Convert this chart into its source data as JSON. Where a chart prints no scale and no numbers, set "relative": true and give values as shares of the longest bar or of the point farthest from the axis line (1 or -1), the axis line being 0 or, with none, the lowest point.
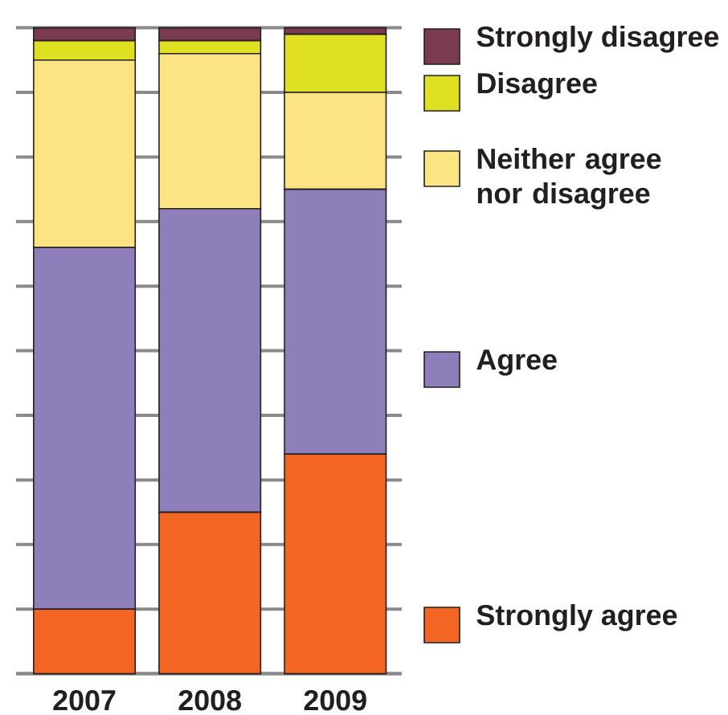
{
  "chart_data": {
    "type": "bar",
    "stacked": true,
    "relative": true,
    "categories": [
      "2007",
      "2008",
      "2009"
    ],
    "series": [
      {
        "name": "Strongly agree",
        "color": "#f26522",
        "values": [
          0.1,
          0.25,
          0.34
        ]
      },
      {
        "name": "Agree",
        "color": "#8e7fba",
        "values": [
          0.56,
          0.47,
          0.41
        ]
      },
      {
        "name": "Neither agree nor disagree",
        "color": "#fde482",
        "values": [
          0.29,
          0.24,
          0.15
        ]
      },
      {
        "name": "Disagree",
        "color": "#dfe021",
        "values": [
          0.03,
          0.02,
          0.09
        ]
      },
      {
        "name": "Strongly disagree",
        "color": "#7a3b50",
        "values": [
          0.02,
          0.02,
          0.01
        ]
      }
    ],
    "grid": "y",
    "legend": "right"
  }
}
